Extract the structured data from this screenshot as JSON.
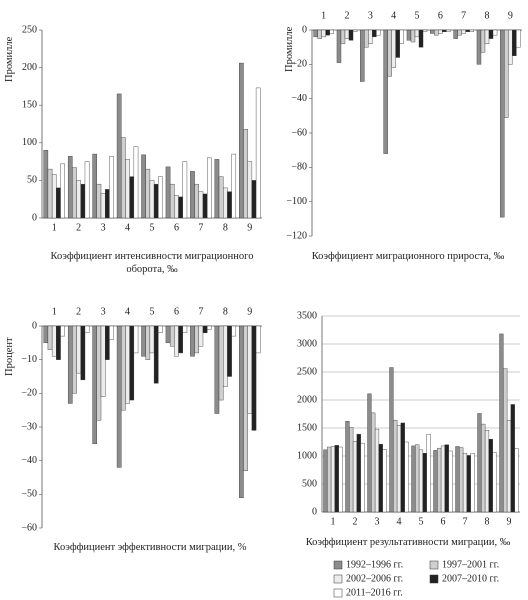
{
  "chart_data": [
    {
      "type": "bar",
      "title": "Коэффициент интенсивности миграционного оборота, ‰",
      "y_label": "Промилле",
      "categories": [
        "1",
        "2",
        "3",
        "4",
        "5",
        "6",
        "7",
        "8",
        "9"
      ],
      "ylim": [
        0,
        250
      ],
      "yticks": [
        0,
        50,
        100,
        150,
        200,
        250
      ],
      "grid": false,
      "series": [
        {
          "color": "#8c8c8c",
          "values": [
            90,
            82,
            85,
            165,
            84,
            68,
            62,
            78,
            206
          ]
        },
        {
          "color": "#cfcfcf",
          "values": [
            65,
            67,
            45,
            107,
            65,
            45,
            45,
            55,
            118
          ]
        },
        {
          "color": "#ededed",
          "values": [
            58,
            50,
            33,
            78,
            50,
            30,
            35,
            40,
            75
          ]
        },
        {
          "color": "#222222",
          "values": [
            40,
            45,
            38,
            55,
            45,
            28,
            32,
            35,
            50
          ]
        },
        {
          "color": "#ffffff",
          "values": [
            72,
            75,
            82,
            95,
            55,
            75,
            80,
            85,
            173
          ]
        }
      ]
    },
    {
      "type": "bar",
      "title": "Коэффициент миграционного прироста, ‰",
      "y_label": "Промилле",
      "categories": [
        "1",
        "2",
        "3",
        "4",
        "5",
        "6",
        "7",
        "8",
        "9"
      ],
      "ylim": [
        -120,
        0
      ],
      "yticks": [
        0,
        {
          "value": -20,
          "label": "−20"
        },
        {
          "value": -40,
          "label": "−40"
        },
        {
          "value": -60,
          "label": "−60"
        },
        {
          "value": -80,
          "label": "−80"
        },
        {
          "value": -100,
          "label": "−100"
        },
        {
          "value": -120,
          "label": "−120"
        }
      ],
      "grid": false,
      "series": [
        {
          "color": "#8c8c8c",
          "values": [
            -4,
            -19,
            -30,
            -72,
            -6,
            -2,
            -5,
            -20,
            -109
          ]
        },
        {
          "color": "#cfcfcf",
          "values": [
            -5,
            -8,
            -10,
            -27,
            -7,
            -3,
            -3,
            -13,
            -51
          ]
        },
        {
          "color": "#ededed",
          "values": [
            -4,
            -5,
            -8,
            -22,
            -4,
            -2,
            -2,
            -8,
            -20
          ]
        },
        {
          "color": "#222222",
          "values": [
            -3,
            -6,
            -4,
            -16,
            -10,
            -1,
            -1,
            -5,
            -15
          ]
        },
        {
          "color": "#ffffff",
          "values": [
            -2,
            -1,
            -3,
            -8,
            -1,
            -1,
            -1,
            -3,
            -10
          ]
        }
      ]
    },
    {
      "type": "bar",
      "title": "Коэффициент эффективности миграции, %",
      "y_label": "Процент",
      "categories": [
        "1",
        "2",
        "3",
        "4",
        "5",
        "6",
        "7",
        "8",
        "9"
      ],
      "ylim": [
        -60,
        0
      ],
      "yticks": [
        0,
        {
          "value": -10,
          "label": "−10"
        },
        {
          "value": -20,
          "label": "−20"
        },
        {
          "value": -30,
          "label": "−30"
        },
        {
          "value": -40,
          "label": "−40"
        },
        {
          "value": -50,
          "label": "−50"
        },
        {
          "value": -60,
          "label": "−60"
        }
      ],
      "grid": false,
      "series": [
        {
          "color": "#8c8c8c",
          "values": [
            -5,
            -23,
            -35,
            -42,
            -9,
            -5,
            -9,
            -26,
            -51
          ]
        },
        {
          "color": "#cfcfcf",
          "values": [
            -7,
            -20,
            -28,
            -25,
            -10,
            -6,
            -8,
            -22,
            -43
          ]
        },
        {
          "color": "#ededed",
          "values": [
            -9,
            -14,
            -21,
            -23,
            -8,
            -9,
            -6,
            -18,
            -26
          ]
        },
        {
          "color": "#222222",
          "values": [
            -10,
            -16,
            -10,
            -22,
            -17,
            -8,
            -2,
            -15,
            -31
          ]
        },
        {
          "color": "#ffffff",
          "values": [
            -3,
            -2,
            -4,
            -8,
            -2,
            -2,
            -1,
            -3,
            -8
          ]
        }
      ]
    },
    {
      "type": "bar",
      "title": "Коэффициент результативности миграции, ‰",
      "categories": [
        "1",
        "2",
        "3",
        "4",
        "5",
        "6",
        "7",
        "8",
        "9"
      ],
      "ylim": [
        0,
        3500
      ],
      "yticks": [
        0,
        500,
        1000,
        1500,
        2000,
        2500,
        3000,
        3500
      ],
      "grid": true,
      "series": [
        {
          "name": "1992–1996 гг.",
          "color": "#8c8c8c",
          "values": [
            1110,
            1620,
            2110,
            2580,
            1180,
            1100,
            1170,
            1760,
            3180
          ]
        },
        {
          "name": "1997–2001 гг.",
          "color": "#cfcfcf",
          "values": [
            1160,
            1510,
            1770,
            1640,
            1200,
            1140,
            1150,
            1570,
            2560
          ]
        },
        {
          "name": "2002–2006 гг.",
          "color": "#ededed",
          "values": [
            1170,
            1260,
            1480,
            1550,
            1110,
            1180,
            1050,
            1460,
            1640
          ]
        },
        {
          "name": "2007–2010 гг.",
          "color": "#222222",
          "values": [
            1190,
            1390,
            1210,
            1590,
            1050,
            1200,
            1010,
            1300,
            1920
          ]
        },
        {
          "name": "2011–2016 гг.",
          "color": "#ffffff",
          "values": [
            1160,
            1230,
            1120,
            1250,
            1390,
            1090,
            1050,
            1060,
            1130
          ]
        }
      ]
    }
  ]
}
